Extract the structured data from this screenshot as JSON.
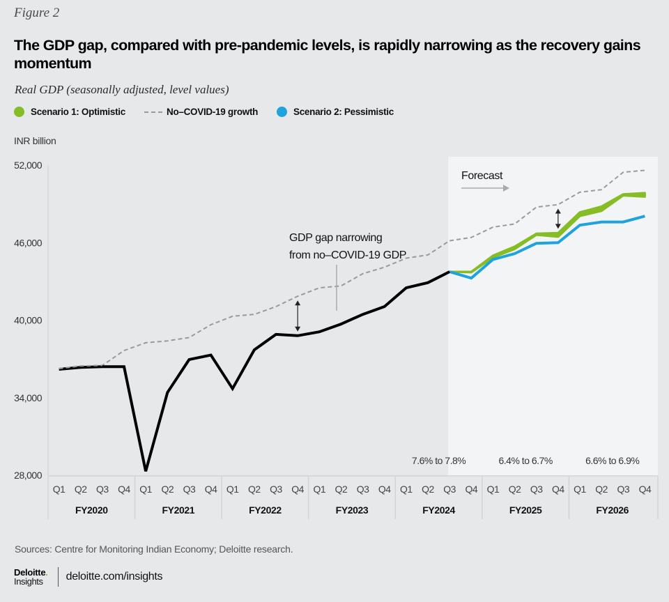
{
  "figure_label": "Figure 2",
  "title": "The GDP gap, compared with pre-pandemic levels, is rapidly narrowing as the recovery gains momentum",
  "subtitle": "Real GDP (seasonally adjusted, level values)",
  "legend": [
    {
      "label": "Scenario 1: Optimistic",
      "marker": "dot",
      "color": "#86bc25"
    },
    {
      "label": "No–COVID-19 growth",
      "marker": "dash",
      "color": "#9a9a9a"
    },
    {
      "label": "Scenario 2: Pessimistic",
      "marker": "dot",
      "color": "#1ea3dc"
    }
  ],
  "unit_label": "INR billion",
  "sources": "Sources: Centre for Monitoring Indian Economy; Deloitte research.",
  "footer": {
    "logo_main": "Deloitte",
    "logo_dot": ".",
    "logo_sub": "Insights",
    "link": "deloitte.com/insights"
  },
  "chart_data": {
    "type": "line",
    "title": "The GDP gap, compared with pre-pandemic levels, is rapidly narrowing as the recovery gains momentum",
    "xlabel": "",
    "ylabel": "INR billion",
    "ylim": [
      28000,
      52000
    ],
    "yticks": [
      28000,
      34000,
      40000,
      46000,
      52000
    ],
    "ytick_labels": [
      "28,000",
      "34,000",
      "40,000",
      "46,000",
      "52,000"
    ],
    "grid": false,
    "legend_position": "top-left",
    "fiscal_years": [
      "FY2020",
      "FY2021",
      "FY2022",
      "FY2023",
      "FY2024",
      "FY2025",
      "FY2026"
    ],
    "quarters": [
      "Q1",
      "Q2",
      "Q3",
      "Q4"
    ],
    "x": [
      "FY2020 Q1",
      "FY2020 Q2",
      "FY2020 Q3",
      "FY2020 Q4",
      "FY2021 Q1",
      "FY2021 Q2",
      "FY2021 Q3",
      "FY2021 Q4",
      "FY2022 Q1",
      "FY2022 Q2",
      "FY2022 Q3",
      "FY2022 Q4",
      "FY2023 Q1",
      "FY2023 Q2",
      "FY2023 Q3",
      "FY2023 Q4",
      "FY2024 Q1",
      "FY2024 Q2",
      "FY2024 Q3",
      "FY2024 Q4",
      "FY2025 Q1",
      "FY2025 Q2",
      "FY2025 Q3",
      "FY2025 Q4",
      "FY2026 Q1",
      "FY2026 Q2",
      "FY2026 Q3",
      "FY2026 Q4"
    ],
    "forecast_start_index": 18,
    "series": [
      {
        "name": "Actual",
        "color": "#000000",
        "start_index": 0,
        "values": [
          36200,
          36350,
          36400,
          36400,
          28300,
          34400,
          36950,
          37300,
          34700,
          37700,
          38900,
          38800,
          39100,
          39700,
          40450,
          41050,
          42500,
          42900,
          43750
        ]
      },
      {
        "name": "No–COVID-19 growth",
        "color": "#9a9a9a",
        "style": "dashed",
        "start_index": 0,
        "values": [
          36250,
          36450,
          36500,
          37650,
          38250,
          38400,
          38650,
          39650,
          40300,
          40450,
          41050,
          41850,
          42500,
          42650,
          43600,
          44100,
          44800,
          45050,
          46150,
          46400,
          47200,
          47450,
          48750,
          48950,
          49900,
          50100,
          51450,
          51600
        ]
      },
      {
        "name": "Scenario 2: Pessimistic",
        "color": "#1ea3dc",
        "start_index": 18,
        "values": [
          43750,
          43250,
          44700,
          45150,
          45950,
          46000,
          47350,
          47600,
          47600,
          48050
        ]
      },
      {
        "name": "Scenario 1: Optimistic",
        "color": "#86bc25",
        "type": "band",
        "start_index": 18,
        "low": [
          43750,
          43700,
          44850,
          45500,
          46600,
          46450,
          48050,
          48450,
          49650,
          49550
        ],
        "high": [
          43750,
          43750,
          45000,
          45700,
          46700,
          46750,
          48350,
          48800,
          49750,
          49850
        ]
      }
    ],
    "annotations": [
      {
        "text_lines": [
          "GDP gap narrowing",
          "from no–COVID-19 GDP"
        ]
      },
      {
        "text": "Forecast",
        "arrow": "right"
      },
      {
        "text": "7.6% to 7.8%",
        "fiscal_year": "FY2024"
      },
      {
        "text": "6.4% to 6.7%",
        "fiscal_year": "FY2025"
      },
      {
        "text": "6.6% to 6.9%",
        "fiscal_year": "FY2026"
      }
    ]
  }
}
